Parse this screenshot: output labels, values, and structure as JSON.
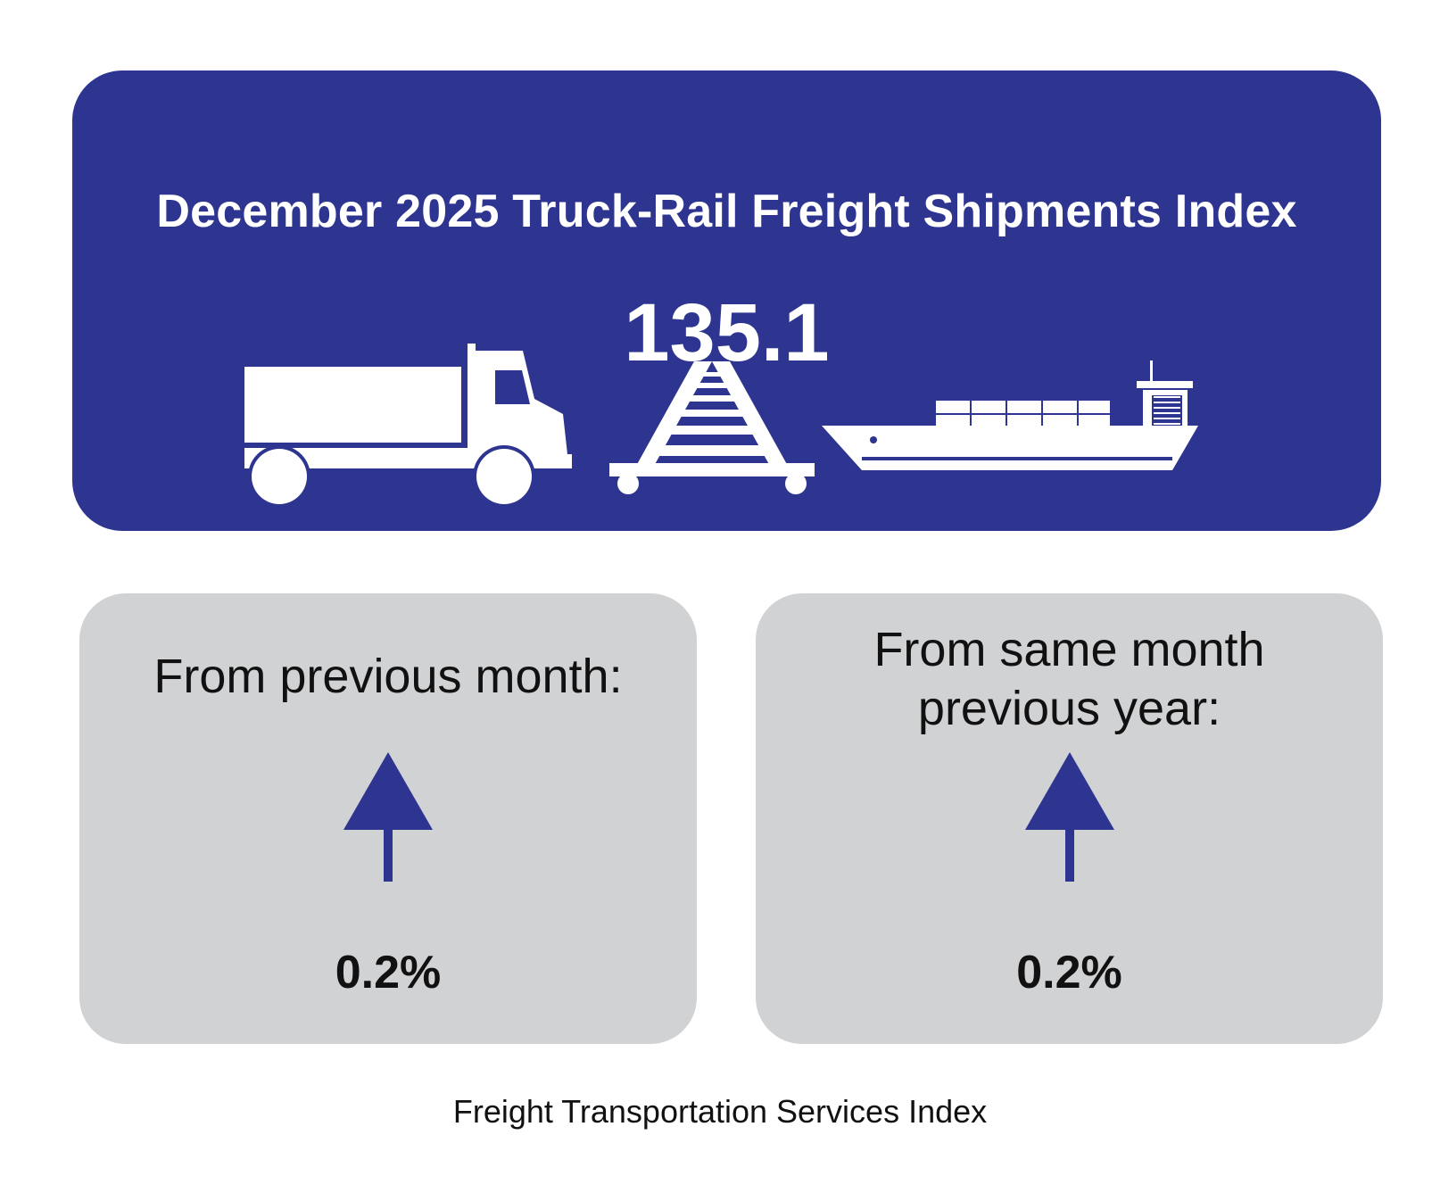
{
  "header": {
    "title": "December 2025 Truck-Rail Freight Shipments Index",
    "value": "135.1",
    "icons": [
      "truck-icon",
      "railroad-track-icon",
      "cargo-ship-icon"
    ]
  },
  "cards": [
    {
      "label": "From previous month:",
      "direction": "up",
      "icon": "arrow-up-icon",
      "value": "0.2%"
    },
    {
      "label": "From same month previous year:",
      "direction": "up",
      "icon": "arrow-up-icon",
      "value": "0.2%"
    }
  ],
  "footer": {
    "text": "Freight Transportation Services Index"
  },
  "colors": {
    "brand_blue": "#2e3590",
    "card_grey": "#d1d2d4"
  }
}
